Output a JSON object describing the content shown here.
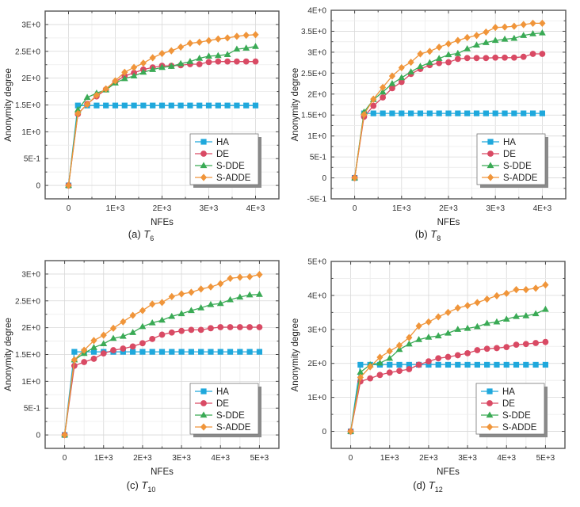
{
  "figure": {
    "series_styles": [
      {
        "name": "HA",
        "color": "#1fa8dc",
        "marker": "square"
      },
      {
        "name": "DE",
        "color": "#d94a64",
        "marker": "circle"
      },
      {
        "name": "S-DDE",
        "color": "#3aaa55",
        "marker": "triangle"
      },
      {
        "name": "S-ADDE",
        "color": "#f0953a",
        "marker": "diamond"
      }
    ]
  },
  "chart_data": [
    {
      "type": "line",
      "caption_prefix": "(a) ",
      "caption_var": "T",
      "caption_sub": "6",
      "xlabel": "NFEs",
      "ylabel": "Anonymity degree",
      "xlim": [
        -500,
        4500
      ],
      "ylim": [
        -0.25,
        3.25
      ],
      "xticks": [
        0,
        1000,
        2000,
        3000,
        4000
      ],
      "xtick_labels": [
        "0",
        "1E+3",
        "2E+3",
        "3E+3",
        "4E+3"
      ],
      "yticks": [
        0,
        0.5,
        1,
        1.5,
        2,
        2.5,
        3
      ],
      "ytick_labels": [
        "0",
        "5E-1",
        "1E+0",
        "1.5E+0",
        "2E+0",
        "2.5E+0",
        "3E+0"
      ],
      "grid": true,
      "legend": "bottom-right",
      "x": [
        0,
        200,
        400,
        600,
        800,
        1000,
        1200,
        1400,
        1600,
        1800,
        2000,
        2200,
        2400,
        2600,
        2800,
        3000,
        3200,
        3400,
        3600,
        3800,
        4000
      ],
      "series": [
        {
          "name": "HA",
          "values": [
            0,
            1.49,
            1.49,
            1.49,
            1.49,
            1.49,
            1.49,
            1.49,
            1.49,
            1.49,
            1.49,
            1.49,
            1.49,
            1.49,
            1.49,
            1.49,
            1.49,
            1.49,
            1.49,
            1.49,
            1.49
          ]
        },
        {
          "name": "DE",
          "values": [
            0,
            1.33,
            1.52,
            1.66,
            1.79,
            1.93,
            2.04,
            2.1,
            2.16,
            2.2,
            2.23,
            2.23,
            2.24,
            2.26,
            2.26,
            2.3,
            2.31,
            2.31,
            2.31,
            2.31,
            2.31
          ]
        },
        {
          "name": "S-DDE",
          "values": [
            0,
            1.41,
            1.64,
            1.72,
            1.78,
            1.91,
            1.99,
            2.04,
            2.11,
            2.16,
            2.2,
            2.22,
            2.27,
            2.31,
            2.37,
            2.41,
            2.42,
            2.44,
            2.54,
            2.56,
            2.59
          ]
        },
        {
          "name": "S-ADDE",
          "values": [
            0,
            1.34,
            1.51,
            1.68,
            1.8,
            1.95,
            2.11,
            2.2,
            2.28,
            2.38,
            2.46,
            2.51,
            2.58,
            2.65,
            2.67,
            2.7,
            2.73,
            2.75,
            2.78,
            2.8,
            2.81
          ]
        }
      ]
    },
    {
      "type": "line",
      "caption_prefix": "(b) ",
      "caption_var": "T",
      "caption_sub": "8",
      "xlabel": "NFEs",
      "ylabel": "Anonymity degree",
      "xlim": [
        -500,
        4500
      ],
      "ylim": [
        -0.5,
        4.0
      ],
      "xticks": [
        0,
        1000,
        2000,
        3000,
        4000
      ],
      "xtick_labels": [
        "0",
        "1E+3",
        "2E+3",
        "3E+3",
        "4E+3"
      ],
      "yticks": [
        -0.5,
        0,
        0.5,
        1,
        1.5,
        2,
        2.5,
        3,
        3.5,
        4
      ],
      "ytick_labels": [
        "-5E-1",
        "0",
        "5E-1",
        "1E+0",
        "1.5E+0",
        "2E+0",
        "2.5E+0",
        "3E+0",
        "3.5E+0",
        "4E+0"
      ],
      "grid": true,
      "legend": "bottom-right",
      "x": [
        0,
        200,
        400,
        600,
        800,
        1000,
        1200,
        1400,
        1600,
        1800,
        2000,
        2200,
        2400,
        2600,
        2800,
        3000,
        3200,
        3400,
        3600,
        3800,
        4000
      ],
      "series": [
        {
          "name": "HA",
          "values": [
            0,
            1.54,
            1.54,
            1.54,
            1.54,
            1.54,
            1.54,
            1.54,
            1.54,
            1.54,
            1.54,
            1.54,
            1.54,
            1.54,
            1.54,
            1.54,
            1.54,
            1.54,
            1.54,
            1.54,
            1.54
          ]
        },
        {
          "name": "DE",
          "values": [
            0,
            1.46,
            1.72,
            1.92,
            2.14,
            2.29,
            2.48,
            2.6,
            2.69,
            2.74,
            2.76,
            2.84,
            2.86,
            2.86,
            2.86,
            2.87,
            2.87,
            2.87,
            2.89,
            2.96,
            2.96
          ]
        },
        {
          "name": "S-DDE",
          "values": [
            0,
            1.57,
            1.87,
            2.05,
            2.25,
            2.39,
            2.53,
            2.66,
            2.75,
            2.85,
            2.94,
            2.97,
            3.08,
            3.17,
            3.23,
            3.28,
            3.31,
            3.33,
            3.4,
            3.44,
            3.46
          ]
        },
        {
          "name": "S-ADDE",
          "values": [
            0,
            1.51,
            1.88,
            2.16,
            2.43,
            2.63,
            2.76,
            2.96,
            3.02,
            3.12,
            3.2,
            3.28,
            3.35,
            3.4,
            3.48,
            3.59,
            3.6,
            3.62,
            3.66,
            3.69,
            3.69
          ]
        }
      ]
    },
    {
      "type": "line",
      "caption_prefix": "(c) ",
      "caption_var": "T",
      "caption_sub": "10",
      "xlabel": "NFEs",
      "ylabel": "Anonymity degree",
      "xlim": [
        -500,
        5500
      ],
      "ylim": [
        -0.25,
        3.25
      ],
      "xticks": [
        0,
        1000,
        2000,
        3000,
        4000,
        5000
      ],
      "xtick_labels": [
        "0",
        "1E+3",
        "2E+3",
        "3E+3",
        "4E+3",
        "5E+3"
      ],
      "yticks": [
        0,
        0.5,
        1,
        1.5,
        2,
        2.5,
        3
      ],
      "ytick_labels": [
        "0",
        "5E-1",
        "1E+0",
        "1.5E+0",
        "2E+0",
        "2.5E+0",
        "3E+0"
      ],
      "grid": true,
      "legend": "bottom-right",
      "x": [
        0,
        250,
        500,
        750,
        1000,
        1250,
        1500,
        1750,
        2000,
        2250,
        2500,
        2750,
        3000,
        3250,
        3500,
        3750,
        4000,
        4250,
        4500,
        4750,
        5000
      ],
      "series": [
        {
          "name": "HA",
          "values": [
            0,
            1.55,
            1.55,
            1.55,
            1.55,
            1.55,
            1.55,
            1.55,
            1.55,
            1.55,
            1.55,
            1.55,
            1.55,
            1.55,
            1.55,
            1.55,
            1.55,
            1.55,
            1.55,
            1.55,
            1.55
          ]
        },
        {
          "name": "DE",
          "values": [
            0,
            1.29,
            1.36,
            1.42,
            1.52,
            1.58,
            1.61,
            1.65,
            1.71,
            1.79,
            1.87,
            1.91,
            1.94,
            1.96,
            1.96,
            1.99,
            2.01,
            2.01,
            2.01,
            2.01,
            2.01
          ]
        },
        {
          "name": "S-DDE",
          "values": [
            0,
            1.4,
            1.52,
            1.63,
            1.7,
            1.8,
            1.84,
            1.91,
            2.02,
            2.09,
            2.14,
            2.21,
            2.26,
            2.32,
            2.37,
            2.43,
            2.45,
            2.52,
            2.57,
            2.61,
            2.62
          ]
        },
        {
          "name": "S-ADDE",
          "values": [
            0,
            1.4,
            1.58,
            1.76,
            1.86,
            1.99,
            2.11,
            2.23,
            2.32,
            2.44,
            2.47,
            2.58,
            2.63,
            2.66,
            2.72,
            2.76,
            2.82,
            2.92,
            2.94,
            2.95,
            2.99
          ]
        }
      ]
    },
    {
      "type": "line",
      "caption_prefix": "(d) ",
      "caption_var": "T",
      "caption_sub": "12",
      "xlabel": "NFEs",
      "ylabel": "Anonymity degree",
      "xlim": [
        -500,
        5500
      ],
      "ylim": [
        -0.5,
        5.0
      ],
      "xticks": [
        0,
        1000,
        2000,
        3000,
        4000,
        5000
      ],
      "xtick_labels": [
        "0",
        "1E+3",
        "2E+3",
        "3E+3",
        "4E+3",
        "5E+3"
      ],
      "yticks": [
        0,
        1,
        2,
        3,
        4,
        5
      ],
      "ytick_labels": [
        "0",
        "1E+0",
        "2E+0",
        "3E+0",
        "4E+0",
        "5E+0"
      ],
      "grid": true,
      "legend": "bottom-right",
      "x": [
        0,
        250,
        500,
        750,
        1000,
        1250,
        1500,
        1750,
        2000,
        2250,
        2500,
        2750,
        3000,
        3250,
        3500,
        3750,
        4000,
        4250,
        4500,
        4750,
        5000
      ],
      "series": [
        {
          "name": "HA",
          "values": [
            0,
            1.96,
            1.96,
            1.96,
            1.96,
            1.96,
            1.96,
            1.96,
            1.96,
            1.96,
            1.96,
            1.96,
            1.96,
            1.96,
            1.96,
            1.96,
            1.96,
            1.96,
            1.96,
            1.96,
            1.96
          ]
        },
        {
          "name": "DE",
          "values": [
            0,
            1.47,
            1.56,
            1.66,
            1.73,
            1.78,
            1.83,
            1.96,
            2.06,
            2.15,
            2.19,
            2.24,
            2.3,
            2.39,
            2.43,
            2.45,
            2.48,
            2.55,
            2.57,
            2.6,
            2.63
          ]
        },
        {
          "name": "S-DDE",
          "values": [
            0,
            1.74,
            1.96,
            2.01,
            2.15,
            2.41,
            2.57,
            2.7,
            2.77,
            2.81,
            2.89,
            3.0,
            3.03,
            3.08,
            3.18,
            3.22,
            3.3,
            3.38,
            3.4,
            3.46,
            3.59
          ]
        },
        {
          "name": "S-ADDE",
          "values": [
            0,
            1.59,
            1.9,
            2.18,
            2.36,
            2.53,
            2.76,
            3.1,
            3.22,
            3.37,
            3.5,
            3.63,
            3.7,
            3.79,
            3.89,
            3.99,
            4.06,
            4.17,
            4.17,
            4.21,
            4.31
          ]
        }
      ]
    }
  ]
}
